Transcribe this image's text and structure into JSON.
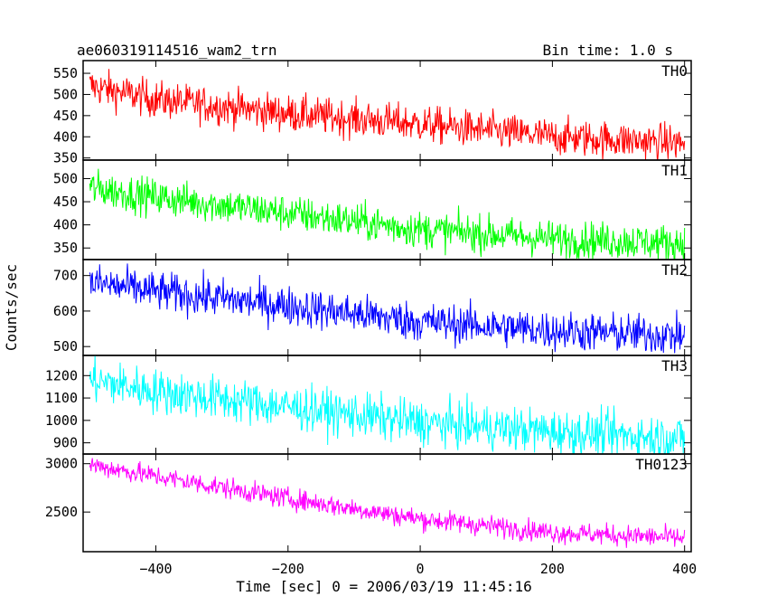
{
  "header": {
    "left_title": "ae060319114516_wam2_trn",
    "right_title": "Bin time: 1.0 s"
  },
  "chart_data": {
    "type": "line",
    "xlabel": "Time [sec] 0 = 2006/03/19 11:45:16",
    "ylabel": "Counts/sec",
    "xlim": [
      -510,
      410
    ],
    "x_ticks": [
      -400,
      -200,
      0,
      200,
      400
    ],
    "x_tick_labels": [
      "−400",
      "−200",
      "0",
      "200",
      "400"
    ],
    "x_start": -500,
    "x_end": 400,
    "bin_time": 1.0,
    "panels": [
      {
        "name": "TH0",
        "color": "#ff0000",
        "ylim": [
          345,
          580
        ],
        "y_ticks": [
          350,
          400,
          450,
          500,
          550
        ],
        "trend": [
          [
            -500,
            520
          ],
          [
            -400,
            488
          ],
          [
            -200,
            455
          ],
          [
            0,
            430
          ],
          [
            200,
            400
          ],
          [
            400,
            385
          ]
        ],
        "noise": 22
      },
      {
        "name": "TH1",
        "color": "#00ff00",
        "ylim": [
          325,
          540
        ],
        "y_ticks": [
          350,
          400,
          450,
          500
        ],
        "trend": [
          [
            -500,
            480
          ],
          [
            -400,
            460
          ],
          [
            -200,
            425
          ],
          [
            0,
            390
          ],
          [
            200,
            370
          ],
          [
            400,
            360
          ]
        ],
        "noise": 20
      },
      {
        "name": "TH2",
        "color": "#0000ff",
        "ylim": [
          475,
          745
        ],
        "y_ticks": [
          500,
          600,
          700
        ],
        "trend": [
          [
            -500,
            680
          ],
          [
            -400,
            655
          ],
          [
            -200,
            615
          ],
          [
            0,
            570
          ],
          [
            200,
            545
          ],
          [
            400,
            530
          ]
        ],
        "noise": 28
      },
      {
        "name": "TH3",
        "color": "#00ffff",
        "ylim": [
          850,
          1290
        ],
        "y_ticks": [
          900,
          1000,
          1100,
          1200
        ],
        "trend": [
          [
            -500,
            1180
          ],
          [
            -400,
            1130
          ],
          [
            -200,
            1060
          ],
          [
            0,
            990
          ],
          [
            200,
            950
          ],
          [
            400,
            920
          ]
        ],
        "noise": 50
      },
      {
        "name": "TH0123",
        "color": "#ff00ff",
        "ylim": [
          2090,
          3100
        ],
        "y_ticks": [
          2500,
          3000
        ],
        "trend": [
          [
            -500,
            2990
          ],
          [
            -400,
            2870
          ],
          [
            -200,
            2640
          ],
          [
            0,
            2430
          ],
          [
            200,
            2290
          ],
          [
            400,
            2230
          ]
        ],
        "noise": 55
      }
    ]
  }
}
